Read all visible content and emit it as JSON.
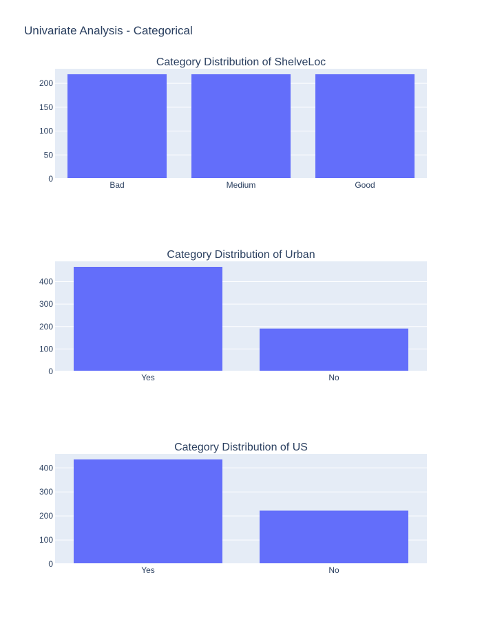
{
  "title": "Univariate Analysis - Categorical",
  "colors": {
    "bar": "#636efa",
    "plot_background": "#e5ecf6",
    "text": "#2a3f5f"
  },
  "chart_data": [
    {
      "type": "bar",
      "title": "Category Distribution of ShelveLoc",
      "categories": [
        "Bad",
        "Medium",
        "Good"
      ],
      "values": [
        219,
        219,
        219
      ],
      "yticks": [
        0,
        50,
        100,
        150,
        200
      ],
      "ylim": [
        0,
        230.5
      ],
      "grid": true
    },
    {
      "type": "bar",
      "title": "Category Distribution of Urban",
      "categories": [
        "Yes",
        "No"
      ],
      "values": [
        466,
        191
      ],
      "yticks": [
        0,
        100,
        200,
        300,
        400
      ],
      "ylim": [
        0,
        490.5
      ],
      "grid": true
    },
    {
      "type": "bar",
      "title": "Category Distribution of US",
      "categories": [
        "Yes",
        "No"
      ],
      "values": [
        435,
        222
      ],
      "yticks": [
        0,
        100,
        200,
        300,
        400
      ],
      "ylim": [
        0,
        458
      ],
      "grid": true
    }
  ]
}
